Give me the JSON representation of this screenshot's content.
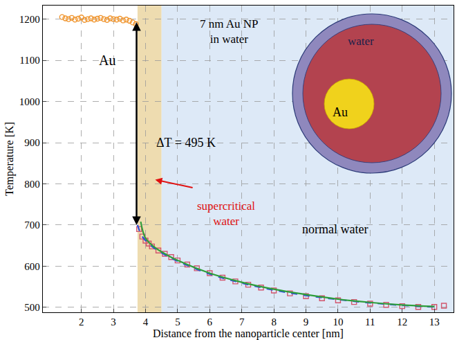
{
  "chart_data": {
    "type": "scatter",
    "x_label": "Distance from the nanoparticle center [nm]",
    "y_label": "Temperature [K]",
    "xlim": [
      0.8,
      13.6
    ],
    "xticks": [
      2,
      3,
      4,
      5,
      6,
      7,
      8,
      9,
      10,
      11,
      12,
      13
    ],
    "ylim": [
      488,
      1233
    ],
    "yticks": [
      500,
      600,
      700,
      800,
      900,
      1000,
      1100,
      1200
    ],
    "grid": true,
    "series": [
      {
        "type": "scatter",
        "marker": "circle-open",
        "color": "#f0952e",
        "x": [
          1.4,
          1.5,
          1.6,
          1.7,
          1.8,
          1.9,
          2.0,
          2.1,
          2.2,
          2.3,
          2.4,
          2.5,
          2.6,
          2.7,
          2.8,
          2.9,
          3.0,
          3.1,
          3.2,
          3.3,
          3.4,
          3.5,
          3.6,
          3.7
        ],
        "values": [
          1205,
          1202,
          1200,
          1203,
          1199,
          1201,
          1204,
          1198,
          1200,
          1202,
          1199,
          1201,
          1203,
          1200,
          1198,
          1202,
          1200,
          1199,
          1201,
          1197,
          1199,
          1196,
          1192,
          1188
        ]
      },
      {
        "type": "scatter",
        "marker": "square-open",
        "color": "#d2566e",
        "x": [
          3.8,
          3.9,
          4.0,
          4.1,
          4.2,
          4.4,
          4.6,
          4.8,
          5.0,
          5.3,
          5.6,
          6.0,
          6.4,
          6.8,
          7.2,
          7.6,
          8.0,
          8.5,
          9.0,
          9.5,
          10.0,
          10.5,
          11.0,
          11.5,
          12.0,
          12.5,
          13.0,
          13.3
        ],
        "values": [
          690,
          672,
          662,
          655,
          648,
          638,
          630,
          622,
          614,
          604,
          595,
          583,
          572,
          563,
          555,
          548,
          541,
          534,
          527,
          522,
          517,
          513,
          509,
          506,
          503,
          501,
          501,
          504
        ]
      },
      {
        "type": "line",
        "line_style": "dash",
        "color": "#2f4fd8",
        "x": [
          3.75,
          3.9,
          4.2,
          4.6,
          5.0,
          6.0,
          7.0,
          8.0,
          9.0,
          10.0,
          11.0,
          12.0,
          13.0
        ],
        "values": [
          700,
          672,
          648,
          628,
          612,
          581,
          559,
          542,
          529,
          519,
          511,
          505,
          501
        ]
      },
      {
        "type": "line",
        "line_style": "solid",
        "color": "#2e9e3a",
        "x": [
          3.85,
          4.0,
          4.3,
          4.7,
          5.0,
          6.0,
          7.0,
          8.0,
          9.0,
          10.0,
          11.0,
          12.0,
          13.0
        ],
        "values": [
          708,
          668,
          645,
          626,
          614,
          583,
          561,
          544,
          531,
          520,
          512,
          506,
          502
        ]
      }
    ],
    "bands": [
      {
        "x0": 3.75,
        "x1": 4.5,
        "color": "#eedcb0"
      },
      {
        "x0": 4.5,
        "x1": 13.6,
        "color": "#dde9f7"
      }
    ],
    "delta_t_arrow": {
      "x": 3.72,
      "y_top": 1195,
      "y_bottom": 700
    },
    "annotations": {
      "metal": "Au",
      "system": [
        "7 nm Au NP",
        "in water"
      ],
      "delta": "ΔT = 495 K",
      "supercritical": [
        "supercritical",
        "water"
      ],
      "normal": "normal water",
      "inset_water": "water",
      "inset_core": "Au"
    }
  }
}
